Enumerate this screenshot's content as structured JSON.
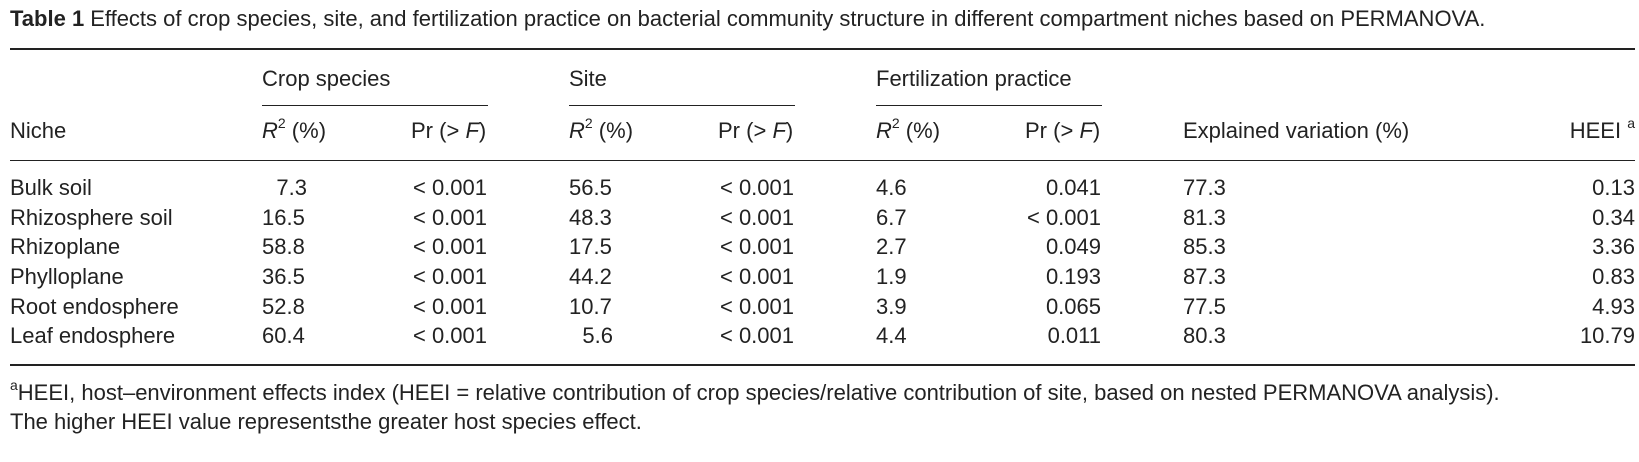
{
  "caption": {
    "label": "Table 1",
    "text": "Effects of crop species, site, and fertilization practice on bacterial community structure in different compartment niches based on PERMANOVA."
  },
  "headers": {
    "groups": [
      "Crop species",
      "Site",
      "Fertilization practice"
    ],
    "niche": "Niche",
    "r2_letter": "R",
    "r2_sup": "2",
    "r2_unit": " (%)",
    "pr_prefix": "Pr (",
    "pr_gt": ">",
    "pr_F": "F",
    "pr_close": ")",
    "explained": "Explained variation (%)",
    "heei": "HEEI",
    "heei_sup": "a"
  },
  "rows": [
    {
      "niche": "Bulk soil",
      "crop_r2": "7.3",
      "crop_pr": "< 0.001",
      "site_r2": "56.5",
      "site_pr": "< 0.001",
      "fert_r2": "4.6",
      "fert_pr": "0.041",
      "explained": "77.3",
      "heei": "0.13"
    },
    {
      "niche": "Rhizosphere soil",
      "crop_r2": "16.5",
      "crop_pr": "< 0.001",
      "site_r2": "48.3",
      "site_pr": "< 0.001",
      "fert_r2": "6.7",
      "fert_pr": "< 0.001",
      "explained": "81.3",
      "heei": "0.34"
    },
    {
      "niche": "Rhizoplane",
      "crop_r2": "58.8",
      "crop_pr": "< 0.001",
      "site_r2": "17.5",
      "site_pr": "< 0.001",
      "fert_r2": "2.7",
      "fert_pr": "0.049",
      "explained": "85.3",
      "heei": "3.36"
    },
    {
      "niche": "Phylloplane",
      "crop_r2": "36.5",
      "crop_pr": "< 0.001",
      "site_r2": "44.2",
      "site_pr": "< 0.001",
      "fert_r2": "1.9",
      "fert_pr": "0.193",
      "explained": "87.3",
      "heei": "0.83"
    },
    {
      "niche": "Root endosphere",
      "crop_r2": "52.8",
      "crop_pr": "< 0.001",
      "site_r2": "10.7",
      "site_pr": "< 0.001",
      "fert_r2": "3.9",
      "fert_pr": "0.065",
      "explained": "77.5",
      "heei": "4.93"
    },
    {
      "niche": "Leaf endosphere",
      "crop_r2": "60.4",
      "crop_pr": "< 0.001",
      "site_r2": "5.6",
      "site_pr": "< 0.001",
      "fert_r2": "4.4",
      "fert_pr": "0.011",
      "explained": "80.3",
      "heei": "10.79"
    }
  ],
  "footnote": {
    "sup": "a",
    "line1": "HEEI, host–environment effects index (HEEI = relative contribution of crop species/relative contribution of site, based on nested PERMANOVA analysis).",
    "line2": "The higher HEEI value representsthe greater host species effect."
  }
}
